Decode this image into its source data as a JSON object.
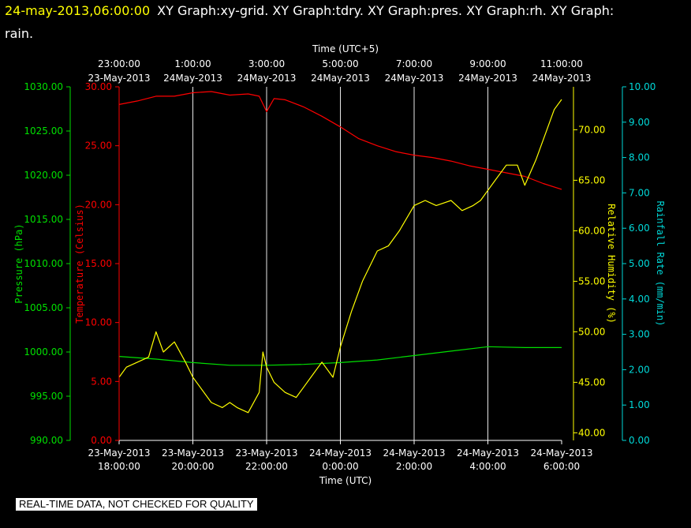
{
  "title": {
    "datetime": "24-may-2013,06:00:00",
    "line1_rest": "XY Graph:xy-grid.  XY Graph:tdry.  XY Graph:pres.  XY Graph:rh.  XY Graph:",
    "line2": "rain."
  },
  "footer": "REAL-TIME DATA, NOT CHECKED FOR QUALITY",
  "colors": {
    "background": "#000000",
    "pressure": "#00e000",
    "temperature": "#ff0000",
    "humidity": "#ffff00",
    "rainfall": "#00d8d8",
    "grid": "#e8e8e8",
    "title_datetime": "#ffff00",
    "text": "#ffffff"
  },
  "chart_data": {
    "type": "line",
    "grid": true,
    "x_top": {
      "title": "Time (UTC+5)",
      "ticks": [
        [
          "23:00:00",
          "23-May-2013"
        ],
        [
          "1:00:00",
          "24May-2013"
        ],
        [
          "3:00:00",
          "24May-2013"
        ],
        [
          "5:00:00",
          "24May-2013"
        ],
        [
          "7:00:00",
          "24May-2013"
        ],
        [
          "9:00:00",
          "24May-2013"
        ],
        [
          "11:00:00",
          "24May-2013"
        ]
      ]
    },
    "x_bottom": {
      "title": "Time (UTC)",
      "range_hours": [
        0,
        12
      ],
      "ticks": [
        [
          "23-May-2013",
          "18:00:00"
        ],
        [
          "23-May-2013",
          "20:00:00"
        ],
        [
          "23-May-2013",
          "22:00:00"
        ],
        [
          "24-May-2013",
          "0:00:00"
        ],
        [
          "24-May-2013",
          "2:00:00"
        ],
        [
          "24-May-2013",
          "4:00:00"
        ],
        [
          "24-May-2013",
          "6:00:00"
        ]
      ]
    },
    "axes": {
      "pressure": {
        "label": "Pressure (hPa)",
        "range": [
          990,
          1030
        ],
        "ticks": [
          "990.00",
          "995.00",
          "1000.00",
          "1005.00",
          "1010.00",
          "1015.00",
          "1020.00",
          "1025.00",
          "1030.00"
        ]
      },
      "temperature": {
        "label": "Temperature (Celsius)",
        "range": [
          0,
          30
        ],
        "ticks": [
          "0.00",
          "5.00",
          "10.00",
          "15.00",
          "20.00",
          "25.00",
          "30.00"
        ]
      },
      "humidity": {
        "label": "Relative Humidity (%)",
        "range": [
          39.25,
          74.25
        ],
        "ticks": [
          "40.00",
          "45.00",
          "50.00",
          "55.00",
          "60.00",
          "65.00",
          "70.00"
        ]
      },
      "rainfall": {
        "label": "Rainfall Rate (mm/min)",
        "range": [
          0,
          10
        ],
        "ticks": [
          "0.00",
          "1.00",
          "2.00",
          "3.00",
          "4.00",
          "5.00",
          "6.00",
          "7.00",
          "8.00",
          "9.00",
          "10.00"
        ]
      }
    },
    "series": [
      {
        "axis": "temperature",
        "x": [
          0,
          0.5,
          1,
          1.5,
          2,
          2.5,
          3,
          3.5,
          3.8,
          4,
          4.2,
          4.5,
          5,
          5.5,
          6,
          6.5,
          7,
          7.5,
          8,
          8.5,
          9,
          9.5,
          10,
          10.5,
          11,
          11.5,
          12
        ],
        "y": [
          28.5,
          28.8,
          29.2,
          29.2,
          29.5,
          29.6,
          29.3,
          29.4,
          29.2,
          27.9,
          29.0,
          28.9,
          28.3,
          27.5,
          26.6,
          25.6,
          25.0,
          24.5,
          24.2,
          24.0,
          23.7,
          23.3,
          23.0,
          22.7,
          22.4,
          21.8,
          21.3
        ]
      },
      {
        "axis": "pressure",
        "x": [
          0,
          1,
          2,
          3,
          4,
          5,
          6,
          7,
          8,
          9,
          10,
          11,
          12
        ],
        "y": [
          999.5,
          999.2,
          998.8,
          998.5,
          998.5,
          998.6,
          998.8,
          999.1,
          999.6,
          1000.1,
          1000.6,
          1000.5,
          1000.5
        ]
      },
      {
        "axis": "humidity",
        "x": [
          0,
          0.2,
          0.5,
          0.8,
          1.0,
          1.2,
          1.5,
          1.8,
          2.0,
          2.2,
          2.5,
          2.8,
          3.0,
          3.2,
          3.5,
          3.8,
          3.9,
          4.0,
          4.2,
          4.5,
          4.8,
          5.0,
          5.2,
          5.5,
          5.8,
          6.0,
          6.3,
          6.6,
          7.0,
          7.3,
          7.6,
          8.0,
          8.3,
          8.6,
          9.0,
          9.3,
          9.6,
          9.8,
          10.0,
          10.2,
          10.5,
          10.8,
          11.0,
          11.3,
          11.6,
          11.8,
          12.0
        ],
        "y": [
          45.5,
          46.5,
          47.0,
          47.5,
          50.0,
          48.0,
          49.0,
          47.0,
          45.5,
          44.5,
          43.0,
          42.5,
          43.0,
          42.5,
          42.0,
          44.0,
          48.0,
          46.5,
          45.0,
          44.0,
          43.5,
          44.5,
          45.5,
          47.0,
          45.5,
          48.5,
          52.0,
          55.0,
          58.0,
          58.5,
          60.0,
          62.5,
          63.0,
          62.5,
          63.0,
          62.0,
          62.5,
          63.0,
          64.0,
          65.0,
          66.5,
          66.5,
          64.5,
          67.0,
          70.0,
          72.0,
          73.0
        ]
      }
    ]
  }
}
